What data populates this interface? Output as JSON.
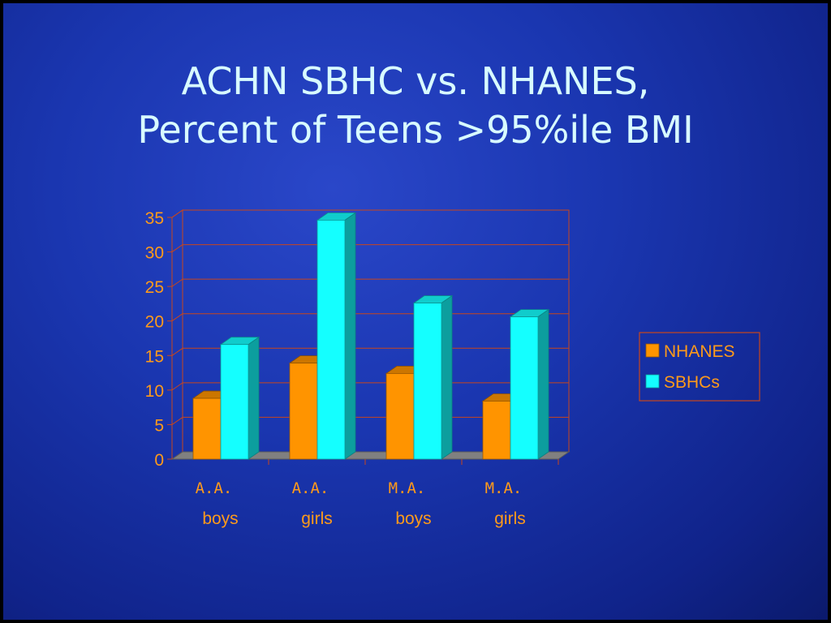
{
  "title_line1": "ACHN SBHC vs. NHANES,",
  "title_line2": "Percent of Teens >95%ile BMI",
  "chart_data": {
    "type": "bar",
    "categories": [
      {
        "line1": "A.A.",
        "line2": "boys"
      },
      {
        "line1": "A.A.",
        "line2": "girls"
      },
      {
        "line1": "M.A.",
        "line2": "boys"
      },
      {
        "line1": "M.A.",
        "line2": "girls"
      }
    ],
    "series": [
      {
        "name": "NHANES",
        "values": [
          8.8,
          13.9,
          12.4,
          8.4
        ],
        "color": "#ff9400"
      },
      {
        "name": "SBHCs",
        "values": [
          16.6,
          34.6,
          22.6,
          20.6
        ],
        "color": "#14ffff"
      }
    ],
    "yticks": [
      0,
      5,
      10,
      15,
      20,
      25,
      30,
      35
    ],
    "ylim": [
      0,
      35
    ],
    "grid": true,
    "legend_position": "right",
    "colors": {
      "axis_text": "#ff9a1a",
      "gridline": "#c8461c",
      "frame": "#c8461c",
      "floor": "#808080"
    }
  }
}
